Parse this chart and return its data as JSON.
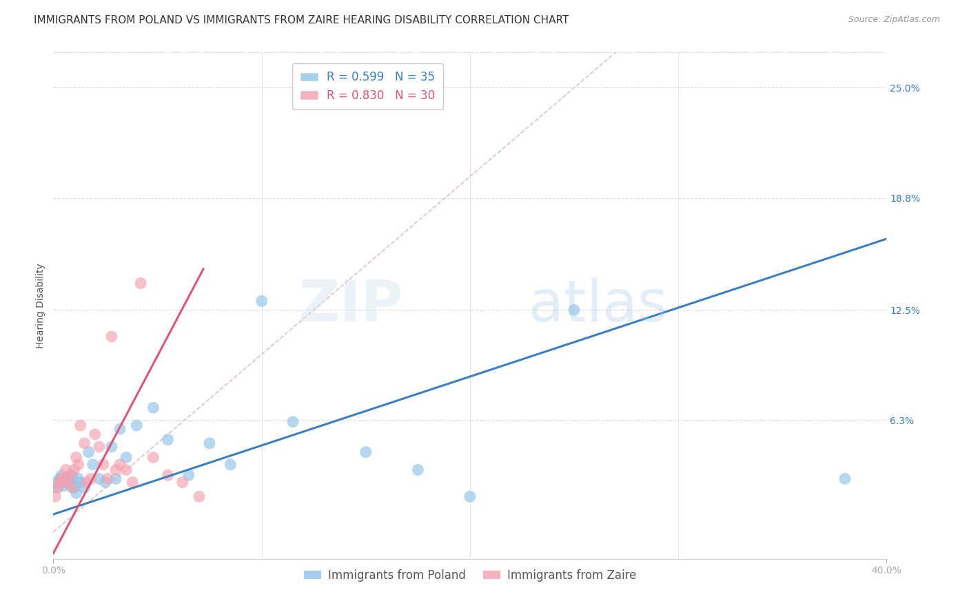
{
  "title": "IMMIGRANTS FROM POLAND VS IMMIGRANTS FROM ZAIRE HEARING DISABILITY CORRELATION CHART",
  "source": "Source: ZipAtlas.com",
  "ylabel": "Hearing Disability",
  "ytick_labels": [
    "25.0%",
    "18.8%",
    "12.5%",
    "6.3%"
  ],
  "ytick_values": [
    0.25,
    0.188,
    0.125,
    0.063
  ],
  "xlim": [
    0.0,
    0.4
  ],
  "ylim": [
    -0.015,
    0.27
  ],
  "legend_poland_R": "R = 0.599",
  "legend_poland_N": "N = 35",
  "legend_zaire_R": "R = 0.830",
  "legend_zaire_N": "N = 30",
  "poland_color": "#8ec4e8",
  "zaire_color": "#f4a0b0",
  "poland_line_color": "#3a7fc1",
  "zaire_line_color": "#e05575",
  "diagonal_color": "#ddbbc0",
  "background_color": "#ffffff",
  "poland_x": [
    0.001,
    0.002,
    0.003,
    0.004,
    0.005,
    0.006,
    0.007,
    0.008,
    0.009,
    0.01,
    0.011,
    0.012,
    0.013,
    0.015,
    0.017,
    0.019,
    0.022,
    0.025,
    0.028,
    0.03,
    0.032,
    0.035,
    0.04,
    0.048,
    0.055,
    0.065,
    0.075,
    0.085,
    0.1,
    0.115,
    0.15,
    0.175,
    0.2,
    0.25,
    0.38
  ],
  "poland_y": [
    0.028,
    0.025,
    0.03,
    0.032,
    0.026,
    0.028,
    0.03,
    0.027,
    0.032,
    0.025,
    0.022,
    0.03,
    0.028,
    0.025,
    0.045,
    0.038,
    0.03,
    0.028,
    0.048,
    0.03,
    0.058,
    0.042,
    0.06,
    0.07,
    0.052,
    0.032,
    0.05,
    0.038,
    0.13,
    0.062,
    0.045,
    0.035,
    0.02,
    0.125,
    0.03
  ],
  "zaire_x": [
    0.001,
    0.002,
    0.003,
    0.004,
    0.005,
    0.006,
    0.007,
    0.008,
    0.009,
    0.01,
    0.011,
    0.012,
    0.013,
    0.015,
    0.016,
    0.018,
    0.02,
    0.022,
    0.024,
    0.026,
    0.028,
    0.03,
    0.032,
    0.035,
    0.038,
    0.042,
    0.048,
    0.055,
    0.062,
    0.07
  ],
  "zaire_y": [
    0.02,
    0.025,
    0.028,
    0.03,
    0.03,
    0.035,
    0.028,
    0.032,
    0.025,
    0.035,
    0.042,
    0.038,
    0.06,
    0.05,
    0.028,
    0.03,
    0.055,
    0.048,
    0.038,
    0.03,
    0.11,
    0.035,
    0.038,
    0.035,
    0.028,
    0.14,
    0.042,
    0.032,
    0.028,
    0.02
  ],
  "poland_line_x": [
    0.0,
    0.4
  ],
  "poland_line_y": [
    0.01,
    0.165
  ],
  "zaire_line_x": [
    0.0,
    0.072
  ],
  "zaire_line_y": [
    -0.012,
    0.148
  ],
  "watermark_zip": "ZIP",
  "watermark_atlas": "atlas",
  "title_fontsize": 11,
  "axis_label_fontsize": 10,
  "tick_fontsize": 10,
  "legend_fontsize": 12
}
